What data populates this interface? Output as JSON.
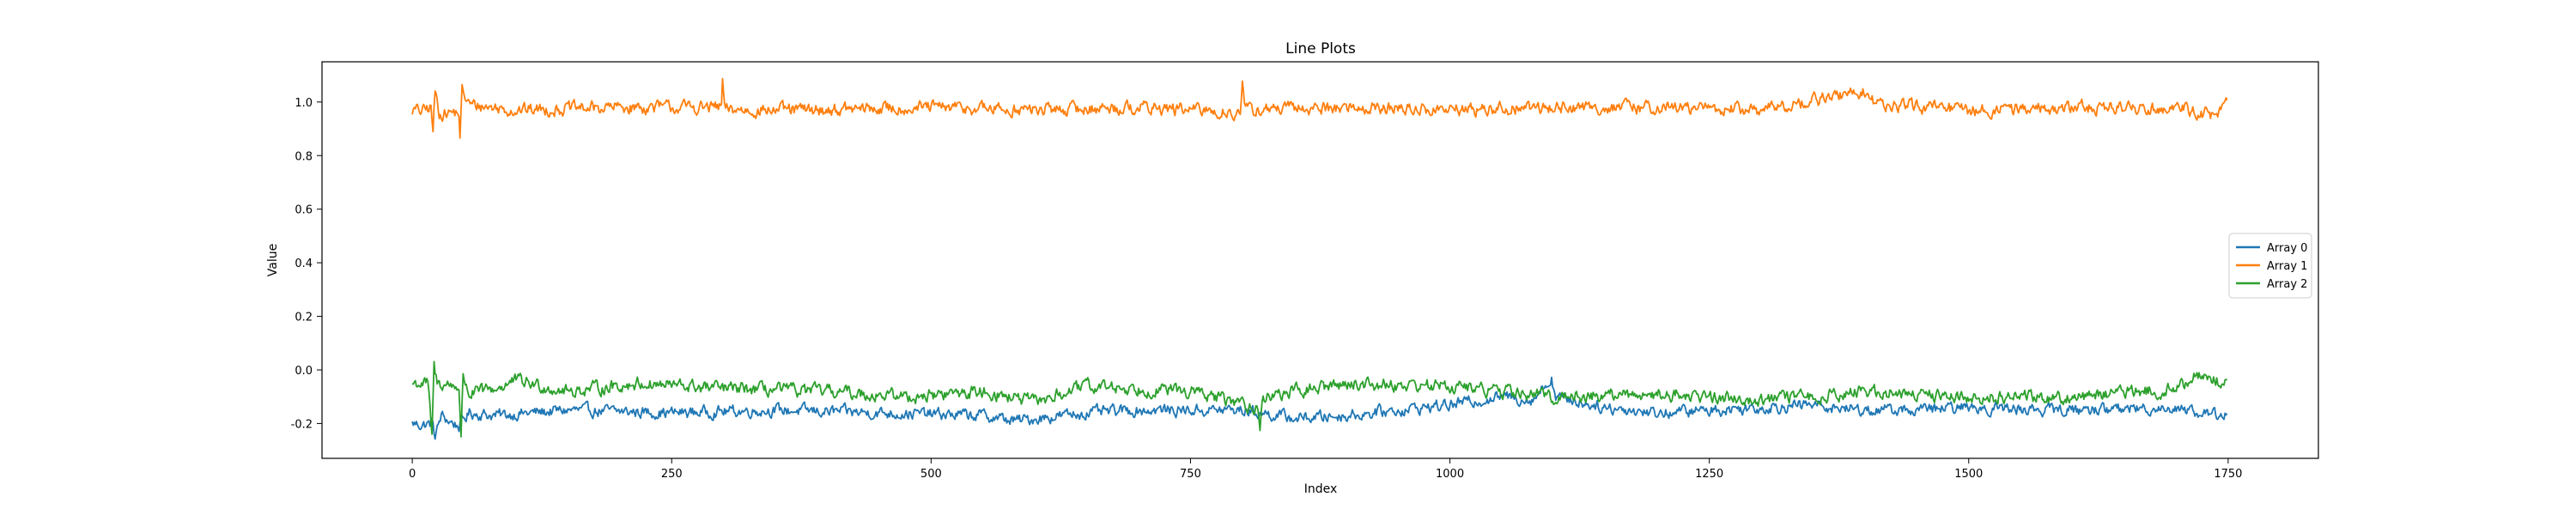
{
  "chart_data": {
    "type": "line",
    "title": "Line Plots",
    "xlabel": "Index",
    "ylabel": "Value",
    "xlim": [
      -87,
      1837
    ],
    "ylim": [
      -0.33,
      1.15
    ],
    "x_ticks": [
      0,
      250,
      500,
      750,
      1000,
      1250,
      1500,
      1750
    ],
    "y_ticks": [
      -0.2,
      0.0,
      0.2,
      0.4,
      0.6,
      0.8,
      1.0
    ],
    "grid": false,
    "legend_position": "center-right",
    "n_points": 1750,
    "series": [
      {
        "name": "Array 0",
        "color": "#1f77b4",
        "keypoints": [
          [
            0,
            -0.2
          ],
          [
            10,
            -0.205
          ],
          [
            20,
            -0.2
          ],
          [
            22,
            -0.25
          ],
          [
            28,
            -0.17
          ],
          [
            35,
            -0.19
          ],
          [
            45,
            -0.21
          ],
          [
            55,
            -0.16
          ],
          [
            80,
            -0.17
          ],
          [
            150,
            -0.15
          ],
          [
            250,
            -0.16
          ],
          [
            350,
            -0.15
          ],
          [
            450,
            -0.16
          ],
          [
            550,
            -0.17
          ],
          [
            580,
            -0.19
          ],
          [
            650,
            -0.16
          ],
          [
            700,
            -0.15
          ],
          [
            800,
            -0.15
          ],
          [
            850,
            -0.18
          ],
          [
            900,
            -0.17
          ],
          [
            1000,
            -0.13
          ],
          [
            1050,
            -0.1
          ],
          [
            1080,
            -0.11
          ],
          [
            1098,
            -0.03
          ],
          [
            1102,
            -0.1
          ],
          [
            1150,
            -0.14
          ],
          [
            1200,
            -0.16
          ],
          [
            1300,
            -0.14
          ],
          [
            1350,
            -0.13
          ],
          [
            1400,
            -0.15
          ],
          [
            1450,
            -0.15
          ],
          [
            1500,
            -0.14
          ],
          [
            1600,
            -0.15
          ],
          [
            1700,
            -0.14
          ],
          [
            1735,
            -0.17
          ],
          [
            1750,
            -0.155
          ]
        ]
      },
      {
        "name": "Array 1",
        "color": "#ff7f0e",
        "keypoints": [
          [
            0,
            0.97
          ],
          [
            10,
            0.965
          ],
          [
            18,
            0.98
          ],
          [
            20,
            0.89
          ],
          [
            22,
            1.04
          ],
          [
            26,
            0.96
          ],
          [
            45,
            0.96
          ],
          [
            46,
            0.86
          ],
          [
            48,
            1.04
          ],
          [
            55,
            0.99
          ],
          [
            100,
            0.97
          ],
          [
            200,
            0.98
          ],
          [
            298,
            0.98
          ],
          [
            299,
            1.08
          ],
          [
            301,
            0.97
          ],
          [
            400,
            0.97
          ],
          [
            500,
            0.98
          ],
          [
            600,
            0.97
          ],
          [
            700,
            0.98
          ],
          [
            798,
            0.96
          ],
          [
            800,
            1.06
          ],
          [
            802,
            0.97
          ],
          [
            900,
            0.98
          ],
          [
            1000,
            0.97
          ],
          [
            1100,
            0.98
          ],
          [
            1200,
            0.98
          ],
          [
            1300,
            0.97
          ],
          [
            1400,
            1.04
          ],
          [
            1410,
            0.99
          ],
          [
            1500,
            0.97
          ],
          [
            1600,
            0.98
          ],
          [
            1700,
            0.98
          ],
          [
            1738,
            0.95
          ],
          [
            1750,
            0.99
          ]
        ]
      },
      {
        "name": "Array 2",
        "color": "#2ca02c",
        "keypoints": [
          [
            0,
            -0.05
          ],
          [
            15,
            -0.05
          ],
          [
            19,
            -0.25
          ],
          [
            21,
            0.01
          ],
          [
            24,
            -0.05
          ],
          [
            45,
            -0.06
          ],
          [
            47,
            -0.26
          ],
          [
            49,
            -0.02
          ],
          [
            55,
            -0.09
          ],
          [
            80,
            -0.07
          ],
          [
            100,
            -0.04
          ],
          [
            150,
            -0.08
          ],
          [
            220,
            -0.05
          ],
          [
            300,
            -0.07
          ],
          [
            400,
            -0.08
          ],
          [
            480,
            -0.1
          ],
          [
            550,
            -0.08
          ],
          [
            600,
            -0.12
          ],
          [
            650,
            -0.06
          ],
          [
            700,
            -0.07
          ],
          [
            750,
            -0.08
          ],
          [
            815,
            -0.14
          ],
          [
            817,
            -0.23
          ],
          [
            820,
            -0.1
          ],
          [
            900,
            -0.05
          ],
          [
            1000,
            -0.06
          ],
          [
            1050,
            -0.08
          ],
          [
            1100,
            -0.1
          ],
          [
            1200,
            -0.09
          ],
          [
            1300,
            -0.11
          ],
          [
            1350,
            -0.1
          ],
          [
            1400,
            -0.08
          ],
          [
            1450,
            -0.09
          ],
          [
            1500,
            -0.1
          ],
          [
            1600,
            -0.1
          ],
          [
            1700,
            -0.07
          ],
          [
            1720,
            -0.02
          ],
          [
            1750,
            -0.05
          ]
        ]
      }
    ]
  }
}
